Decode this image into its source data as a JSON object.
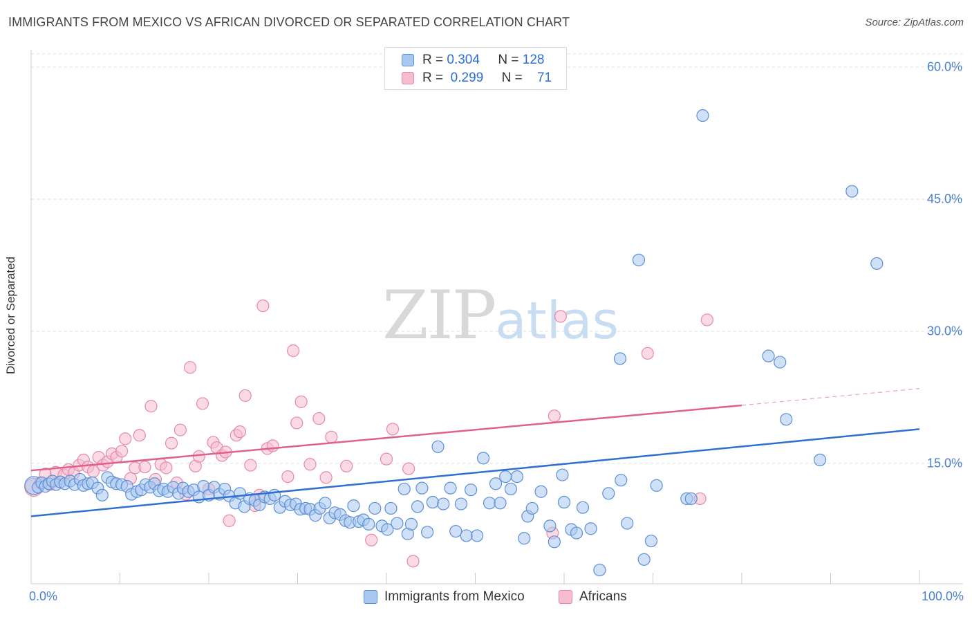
{
  "title": "IMMIGRANTS FROM MEXICO VS AFRICAN DIVORCED OR SEPARATED CORRELATION CHART",
  "source": "Source: ZipAtlas.com",
  "watermark": {
    "zip": "ZIP",
    "atlas": "atlas"
  },
  "colors": {
    "mexico_fill": "#a9c8f0",
    "mexico_stroke": "#5b8fd6",
    "mexico_line": "#2f6fd3",
    "africans_fill": "#f6bcd0",
    "africans_stroke": "#e888a8",
    "africans_line": "#e0608a",
    "tick_text": "#4a7fd0",
    "grid": "#dddddd"
  },
  "legend": {
    "rows": [
      {
        "r_label": "R =",
        "r_value": "0.304",
        "n_label": "N =",
        "n_value": "128"
      },
      {
        "r_label": "R =",
        "r_value": "0.299",
        "n_label": "N =",
        "n_value": "71"
      }
    ]
  },
  "chart_data": {
    "type": "scatter",
    "title": "IMMIGRANTS FROM MEXICO VS AFRICAN DIVORCED OR SEPARATED CORRELATION CHART",
    "xlabel": "",
    "ylabel": "Divorced or Separated",
    "xlim": [
      0,
      100
    ],
    "ylim": [
      0,
      60
    ],
    "x_tick_labels": [
      "0.0%",
      "100.0%"
    ],
    "y_ticks": [
      15,
      30,
      45,
      60
    ],
    "y_tick_labels": [
      "15.0%",
      "30.0%",
      "45.0%",
      "60.0%"
    ],
    "grid": true,
    "legend_position": "bottom",
    "series": [
      {
        "name": "Immigrants from Mexico",
        "trend": {
          "x": [
            0,
            100
          ],
          "y": [
            9.0,
            18.9
          ]
        },
        "points": [
          [
            0.3,
            12.5
          ],
          [
            0.8,
            12.3
          ],
          [
            1.2,
            12.8
          ],
          [
            1.6,
            12.4
          ],
          [
            2.0,
            12.7
          ],
          [
            2.4,
            13.0
          ],
          [
            2.8,
            12.6
          ],
          [
            3.3,
            12.9
          ],
          [
            3.8,
            12.7
          ],
          [
            4.4,
            13.0
          ],
          [
            4.9,
            12.6
          ],
          [
            5.5,
            13.2
          ],
          [
            5.9,
            12.5
          ],
          [
            6.4,
            12.7
          ],
          [
            6.9,
            12.8
          ],
          [
            7.5,
            12.2
          ],
          [
            8.0,
            11.4
          ],
          [
            8.6,
            13.4
          ],
          [
            9.1,
            12.9
          ],
          [
            9.6,
            12.7
          ],
          [
            10.2,
            12.6
          ],
          [
            10.8,
            12.4
          ],
          [
            11.3,
            11.5
          ],
          [
            11.9,
            11.8
          ],
          [
            12.4,
            12.0
          ],
          [
            12.9,
            12.6
          ],
          [
            13.4,
            12.3
          ],
          [
            13.9,
            12.7
          ],
          [
            14.4,
            11.9
          ],
          [
            14.9,
            12.1
          ],
          [
            15.4,
            11.8
          ],
          [
            16.0,
            12.3
          ],
          [
            16.6,
            11.6
          ],
          [
            17.1,
            12.2
          ],
          [
            17.7,
            11.8
          ],
          [
            18.3,
            12.0
          ],
          [
            18.9,
            11.2
          ],
          [
            19.4,
            12.4
          ],
          [
            20.0,
            11.4
          ],
          [
            20.6,
            12.3
          ],
          [
            21.2,
            11.5
          ],
          [
            21.8,
            12.1
          ],
          [
            22.3,
            11.3
          ],
          [
            23.0,
            10.5
          ],
          [
            23.5,
            11.6
          ],
          [
            24.0,
            10.1
          ],
          [
            24.6,
            11.0
          ],
          [
            25.2,
            10.8
          ],
          [
            25.7,
            10.3
          ],
          [
            26.3,
            11.2
          ],
          [
            26.9,
            11.0
          ],
          [
            27.4,
            11.4
          ],
          [
            28.0,
            10.0
          ],
          [
            28.6,
            10.7
          ],
          [
            29.2,
            10.3
          ],
          [
            29.8,
            10.4
          ],
          [
            30.3,
            9.8
          ],
          [
            30.9,
            9.9
          ],
          [
            31.4,
            9.8
          ],
          [
            32.0,
            9.1
          ],
          [
            32.5,
            9.9
          ],
          [
            33.1,
            10.5
          ],
          [
            33.6,
            8.8
          ],
          [
            34.2,
            9.4
          ],
          [
            34.8,
            9.2
          ],
          [
            35.4,
            8.5
          ],
          [
            35.9,
            8.3
          ],
          [
            36.3,
            10.2
          ],
          [
            36.9,
            8.4
          ],
          [
            37.4,
            8.6
          ],
          [
            38.0,
            8.1
          ],
          [
            38.7,
            9.9
          ],
          [
            39.5,
            7.9
          ],
          [
            40.1,
            7.5
          ],
          [
            40.5,
            9.9
          ],
          [
            41.2,
            8.2
          ],
          [
            42.0,
            12.1
          ],
          [
            42.4,
            7.0
          ],
          [
            42.8,
            8.1
          ],
          [
            43.5,
            10.1
          ],
          [
            44.0,
            12.2
          ],
          [
            44.6,
            7.2
          ],
          [
            45.2,
            10.6
          ],
          [
            45.8,
            16.9
          ],
          [
            46.4,
            10.4
          ],
          [
            47.2,
            12.2
          ],
          [
            47.8,
            7.3
          ],
          [
            48.4,
            10.4
          ],
          [
            49.0,
            6.8
          ],
          [
            49.5,
            12.0
          ],
          [
            50.2,
            6.8
          ],
          [
            50.9,
            15.6
          ],
          [
            51.6,
            10.5
          ],
          [
            52.3,
            12.7
          ],
          [
            52.8,
            10.5
          ],
          [
            53.4,
            13.5
          ],
          [
            54.0,
            12.1
          ],
          [
            54.7,
            13.5
          ],
          [
            55.5,
            6.5
          ],
          [
            55.9,
            9.0
          ],
          [
            56.4,
            9.9
          ],
          [
            57.4,
            11.8
          ],
          [
            58.4,
            7.9
          ],
          [
            58.9,
            6.1
          ],
          [
            59.8,
            13.7
          ],
          [
            60.0,
            10.6
          ],
          [
            60.8,
            7.5
          ],
          [
            61.4,
            7.1
          ],
          [
            62.1,
            10.0
          ],
          [
            63.0,
            7.6
          ],
          [
            64.0,
            2.9
          ],
          [
            65.0,
            11.6
          ],
          [
            66.4,
            13.1
          ],
          [
            67.1,
            8.2
          ],
          [
            68.4,
            38.1
          ],
          [
            69.0,
            4.1
          ],
          [
            69.8,
            6.2
          ],
          [
            70.4,
            12.5
          ],
          [
            73.8,
            11.0
          ],
          [
            66.3,
            26.9
          ],
          [
            74.3,
            11.0
          ],
          [
            75.6,
            54.5
          ],
          [
            83.0,
            27.2
          ],
          [
            84.3,
            26.5
          ],
          [
            88.8,
            15.4
          ],
          [
            92.4,
            45.9
          ],
          [
            85.0,
            20.0
          ],
          [
            95.2,
            37.7
          ]
        ]
      },
      {
        "name": "Africans",
        "trend": {
          "x": [
            0,
            80
          ],
          "y": [
            14.2,
            21.6
          ],
          "dashed_x": [
            80,
            100
          ],
          "dashed_y": [
            21.6,
            23.5
          ]
        },
        "points": [
          [
            0.3,
            12.3
          ],
          [
            1.0,
            12.8
          ],
          [
            1.6,
            13.8
          ],
          [
            2.1,
            12.6
          ],
          [
            2.8,
            14.0
          ],
          [
            3.2,
            12.9
          ],
          [
            3.7,
            13.7
          ],
          [
            4.2,
            14.3
          ],
          [
            4.8,
            13.9
          ],
          [
            5.4,
            14.8
          ],
          [
            5.9,
            15.4
          ],
          [
            6.4,
            14.6
          ],
          [
            7.0,
            14.1
          ],
          [
            7.6,
            15.7
          ],
          [
            8.1,
            14.8
          ],
          [
            8.6,
            15.2
          ],
          [
            9.1,
            16.1
          ],
          [
            9.6,
            15.7
          ],
          [
            10.2,
            16.4
          ],
          [
            10.6,
            17.8
          ],
          [
            11.2,
            13.3
          ],
          [
            11.7,
            14.5
          ],
          [
            12.2,
            18.2
          ],
          [
            12.8,
            14.6
          ],
          [
            13.5,
            21.5
          ],
          [
            14.0,
            13.2
          ],
          [
            14.6,
            14.9
          ],
          [
            15.2,
            14.5
          ],
          [
            15.8,
            17.3
          ],
          [
            16.4,
            12.8
          ],
          [
            16.8,
            18.8
          ],
          [
            17.4,
            11.5
          ],
          [
            17.9,
            25.9
          ],
          [
            18.5,
            14.7
          ],
          [
            18.9,
            15.8
          ],
          [
            19.3,
            21.8
          ],
          [
            20.0,
            12.1
          ],
          [
            20.5,
            17.4
          ],
          [
            20.9,
            16.8
          ],
          [
            21.5,
            15.9
          ],
          [
            21.9,
            16.3
          ],
          [
            22.3,
            8.5
          ],
          [
            23.1,
            18.2
          ],
          [
            23.5,
            18.6
          ],
          [
            24.1,
            22.7
          ],
          [
            24.7,
            14.8
          ],
          [
            25.2,
            10.2
          ],
          [
            25.7,
            11.4
          ],
          [
            26.1,
            32.9
          ],
          [
            26.6,
            16.7
          ],
          [
            27.2,
            17.0
          ],
          [
            28.9,
            13.5
          ],
          [
            29.5,
            27.8
          ],
          [
            29.9,
            19.6
          ],
          [
            30.4,
            22.0
          ],
          [
            31.4,
            14.9
          ],
          [
            32.4,
            20.1
          ],
          [
            33.2,
            13.4
          ],
          [
            33.8,
            18.0
          ],
          [
            35.5,
            14.7
          ],
          [
            38.3,
            6.3
          ],
          [
            40.0,
            15.5
          ],
          [
            40.7,
            18.9
          ],
          [
            42.5,
            14.4
          ],
          [
            43.0,
            3.9
          ],
          [
            58.7,
            7.1
          ],
          [
            58.9,
            20.4
          ],
          [
            59.6,
            31.7
          ],
          [
            69.4,
            27.5
          ],
          [
            75.3,
            11.0
          ],
          [
            76.1,
            31.3
          ]
        ]
      }
    ]
  },
  "bottom_legend": [
    {
      "label": "Immigrants from Mexico"
    },
    {
      "label": "Africans"
    }
  ]
}
